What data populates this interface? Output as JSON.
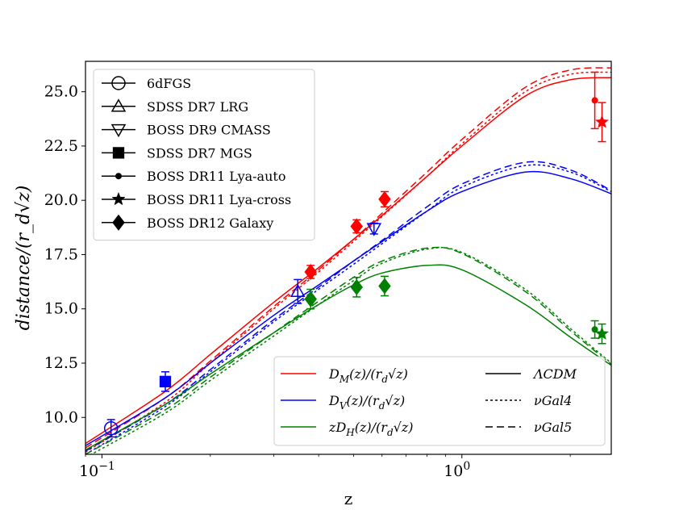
{
  "chart_data": {
    "type": "line",
    "xlabel": "z",
    "ylabel": "distance/(r_d√z)",
    "xscale": "log",
    "xlim": [
      0.09,
      2.6
    ],
    "ylim": [
      8.3,
      26.4
    ],
    "xticks": [
      {
        "v": 0.1,
        "base": "10",
        "exp": "−1"
      },
      {
        "v": 1.0,
        "base": "10",
        "exp": "0"
      }
    ],
    "yticks": [
      {
        "v": 10.0,
        "label": "10.0"
      },
      {
        "v": 12.5,
        "label": "12.5"
      },
      {
        "v": 15.0,
        "label": "15.0"
      },
      {
        "v": 17.5,
        "label": "17.5"
      },
      {
        "v": 20.0,
        "label": "20.0"
      },
      {
        "v": 22.5,
        "label": "22.5"
      },
      {
        "v": 25.0,
        "label": "25.0"
      }
    ],
    "colors": {
      "DM": "#ff0000",
      "DV": "#0000ff",
      "DH": "#008000"
    },
    "curves": [
      {
        "name": "DM LCDM",
        "quantity": "DM",
        "model": "LCDM",
        "x": [
          0.09,
          0.15,
          0.2,
          0.3,
          0.4,
          0.5,
          0.6,
          0.8,
          1.0,
          1.5,
          2.0,
          2.6
        ],
        "y": [
          8.8,
          11.2,
          12.9,
          15.3,
          16.9,
          18.2,
          19.3,
          21.1,
          22.5,
          24.8,
          25.55,
          25.65
        ]
      },
      {
        "name": "DM nuGal4",
        "quantity": "DM",
        "model": "nuGal4",
        "x": [
          0.09,
          0.15,
          0.2,
          0.3,
          0.4,
          0.5,
          0.6,
          0.8,
          1.0,
          1.5,
          2.0,
          2.6
        ],
        "y": [
          8.4,
          10.7,
          12.5,
          15.0,
          16.7,
          18.1,
          19.25,
          21.1,
          22.6,
          25.0,
          25.8,
          25.9
        ]
      },
      {
        "name": "DM nuGal5",
        "quantity": "DM",
        "model": "nuGal5",
        "x": [
          0.09,
          0.15,
          0.2,
          0.3,
          0.4,
          0.5,
          0.6,
          0.8,
          1.0,
          1.5,
          2.0,
          2.6
        ],
        "y": [
          8.6,
          10.9,
          12.6,
          15.1,
          16.8,
          18.2,
          19.4,
          21.3,
          22.8,
          25.2,
          26.0,
          26.1
        ]
      },
      {
        "name": "DV LCDM",
        "quantity": "DV",
        "model": "LCDM",
        "x": [
          0.09,
          0.15,
          0.2,
          0.3,
          0.4,
          0.5,
          0.6,
          0.8,
          1.0,
          1.5,
          2.0,
          2.6
        ],
        "y": [
          8.7,
          10.9,
          12.5,
          14.7,
          16.1,
          17.2,
          18.1,
          19.5,
          20.4,
          21.3,
          21.0,
          20.3
        ]
      },
      {
        "name": "DV nuGal4",
        "quantity": "DV",
        "model": "nuGal4",
        "x": [
          0.09,
          0.15,
          0.2,
          0.3,
          0.4,
          0.5,
          0.6,
          0.8,
          1.0,
          1.5,
          2.0,
          2.6
        ],
        "y": [
          8.3,
          10.5,
          12.1,
          14.4,
          15.9,
          17.05,
          18.0,
          19.5,
          20.6,
          21.6,
          21.3,
          20.4
        ]
      },
      {
        "name": "DV nuGal5",
        "quantity": "DV",
        "model": "nuGal5",
        "x": [
          0.09,
          0.15,
          0.2,
          0.3,
          0.4,
          0.5,
          0.6,
          0.8,
          1.0,
          1.5,
          2.0,
          2.6
        ],
        "y": [
          8.45,
          10.6,
          12.2,
          14.5,
          16.0,
          17.2,
          18.15,
          19.7,
          20.75,
          21.75,
          21.4,
          20.45
        ]
      },
      {
        "name": "zDH LCDM",
        "quantity": "DH",
        "model": "LCDM",
        "x": [
          0.09,
          0.15,
          0.2,
          0.3,
          0.4,
          0.5,
          0.6,
          0.8,
          1.0,
          1.5,
          2.0,
          2.6
        ],
        "y": [
          8.5,
          10.6,
          12.0,
          13.9,
          15.2,
          16.1,
          16.65,
          17.0,
          16.8,
          15.2,
          13.7,
          12.4
        ]
      },
      {
        "name": "zDH nuGal4",
        "quantity": "DH",
        "model": "nuGal4",
        "x": [
          0.09,
          0.15,
          0.2,
          0.3,
          0.4,
          0.5,
          0.6,
          0.8,
          1.0,
          1.5,
          2.0,
          2.6
        ],
        "y": [
          8.15,
          10.2,
          11.7,
          13.75,
          15.2,
          16.3,
          17.1,
          17.75,
          17.6,
          15.9,
          14.1,
          12.5
        ]
      },
      {
        "name": "zDH nuGal5",
        "quantity": "DH",
        "model": "nuGal5",
        "x": [
          0.09,
          0.15,
          0.2,
          0.3,
          0.4,
          0.5,
          0.6,
          0.8,
          1.0,
          1.5,
          2.0,
          2.6
        ],
        "y": [
          8.3,
          10.35,
          11.85,
          13.9,
          15.35,
          16.45,
          17.2,
          17.8,
          17.55,
          15.8,
          14.0,
          12.45
        ]
      }
    ],
    "points": [
      {
        "survey": "6dFGS",
        "quantity": "DV",
        "marker": "circle",
        "filled": false,
        "z": 0.106,
        "y": 9.5,
        "err": 0.4
      },
      {
        "survey": "SDSS DR7 MGS",
        "quantity": "DV",
        "marker": "square",
        "filled": true,
        "z": 0.15,
        "y": 11.65,
        "err": 0.45
      },
      {
        "survey": "SDSS DR7 LRG",
        "quantity": "DV",
        "marker": "triangle-up",
        "filled": false,
        "z": 0.35,
        "y": 15.8,
        "err": 0.55
      },
      {
        "survey": "BOSS DR9 CMASS",
        "quantity": "DV",
        "marker": "triangle-down",
        "filled": false,
        "z": 0.57,
        "y": 18.7,
        "err": 0.25
      },
      {
        "survey": "BOSS DR12 Galaxy",
        "quantity": "DM",
        "marker": "diamond",
        "filled": true,
        "z": 0.38,
        "y": 16.7,
        "err": 0.3
      },
      {
        "survey": "BOSS DR12 Galaxy",
        "quantity": "DM",
        "marker": "diamond",
        "filled": true,
        "z": 0.51,
        "y": 18.8,
        "err": 0.3
      },
      {
        "survey": "BOSS DR12 Galaxy",
        "quantity": "DM",
        "marker": "diamond",
        "filled": true,
        "z": 0.61,
        "y": 20.05,
        "err": 0.35
      },
      {
        "survey": "BOSS DR12 Galaxy",
        "quantity": "DH",
        "marker": "diamond",
        "filled": true,
        "z": 0.38,
        "y": 15.45,
        "err": 0.45
      },
      {
        "survey": "BOSS DR12 Galaxy",
        "quantity": "DH",
        "marker": "diamond",
        "filled": true,
        "z": 0.51,
        "y": 16.0,
        "err": 0.45
      },
      {
        "survey": "BOSS DR12 Galaxy",
        "quantity": "DH",
        "marker": "diamond",
        "filled": true,
        "z": 0.61,
        "y": 16.05,
        "err": 0.45
      },
      {
        "survey": "BOSS DR11 Lya-auto",
        "quantity": "DM",
        "marker": "dot",
        "filled": true,
        "z": 2.34,
        "y": 24.6,
        "err": 1.3
      },
      {
        "survey": "BOSS DR11 Lya-auto",
        "quantity": "DH",
        "marker": "dot",
        "filled": true,
        "z": 2.34,
        "y": 14.05,
        "err": 0.4
      },
      {
        "survey": "BOSS DR11 Lya-cross",
        "quantity": "DM",
        "marker": "star",
        "filled": true,
        "z": 2.45,
        "y": 23.6,
        "err": 0.9
      },
      {
        "survey": "BOSS DR11 Lya-cross",
        "quantity": "DH",
        "marker": "star",
        "filled": true,
        "z": 2.45,
        "y": 13.85,
        "err": 0.45
      }
    ],
    "legend_markers": {
      "placement": "upper-left",
      "entries": [
        {
          "label": "6dFGS",
          "marker": "circle",
          "filled": false
        },
        {
          "label": "SDSS DR7 LRG",
          "marker": "triangle-up",
          "filled": false
        },
        {
          "label": "BOSS DR9 CMASS",
          "marker": "triangle-down",
          "filled": false
        },
        {
          "label": "SDSS DR7 MGS",
          "marker": "square",
          "filled": true
        },
        {
          "label": "BOSS DR11 Lya-auto",
          "marker": "dot",
          "filled": true
        },
        {
          "label": "BOSS DR11 Lya-cross",
          "marker": "star",
          "filled": true
        },
        {
          "label": "BOSS DR12 Galaxy",
          "marker": "diamond",
          "filled": true
        }
      ]
    },
    "legend_lines": {
      "placement": "lower-right",
      "quantities": [
        {
          "key": "DM",
          "pre": "",
          "sym": "D",
          "sub": "M",
          "post": "(z)/(r",
          "sub2": "d",
          "post2": "√z)"
        },
        {
          "key": "DV",
          "pre": "",
          "sym": "D",
          "sub": "V",
          "post": "(z)/(r",
          "sub2": "d",
          "post2": "√z)"
        },
        {
          "key": "DH",
          "pre": "z",
          "sym": "D",
          "sub": "H",
          "post": "(z)/(r",
          "sub2": "d",
          "post2": "√z)"
        }
      ],
      "models": [
        {
          "key": "LCDM",
          "label": "ΛCDM",
          "dash": "solid"
        },
        {
          "key": "nuGal4",
          "label": "νGal4",
          "dash": "dotted"
        },
        {
          "key": "nuGal5",
          "label": "νGal5",
          "dash": "dashed"
        }
      ]
    }
  }
}
